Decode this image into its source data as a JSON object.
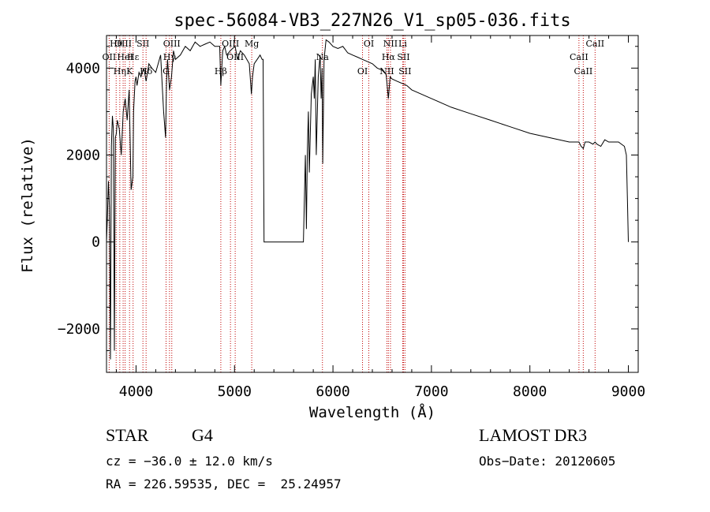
{
  "chart_data": {
    "type": "line",
    "title": "spec-56084-VB3_227N26_V1_sp05-036.fits",
    "xlabel": "Wavelength (Å)",
    "ylabel": "Flux (relative)",
    "xlim": [
      3700,
      9100
    ],
    "ylim": [
      -3000,
      4750
    ],
    "xticks": [
      4000,
      5000,
      6000,
      7000,
      8000,
      9000
    ],
    "yticks": [
      -2000,
      0,
      2000,
      4000
    ],
    "xtick_labels": [
      "4000",
      "5000",
      "6000",
      "7000",
      "8000",
      "9000"
    ],
    "ytick_labels": [
      "-2000",
      "0",
      "2000",
      "4000"
    ],
    "series": [
      {
        "name": "spectrum",
        "x": [
          3700,
          3710,
          3720,
          3730,
          3740,
          3750,
          3760,
          3770,
          3780,
          3790,
          3800,
          3810,
          3830,
          3850,
          3870,
          3890,
          3910,
          3930,
          3950,
          3968,
          3975,
          3990,
          4000,
          4010,
          4030,
          4050,
          4080,
          4102,
          4130,
          4160,
          4200,
          4250,
          4280,
          4300,
          4310,
          4320,
          4340,
          4360,
          4380,
          4400,
          4450,
          4500,
          4550,
          4600,
          4650,
          4700,
          4750,
          4800,
          4850,
          4861,
          4880,
          4900,
          4920,
          4957,
          4980,
          5007,
          5030,
          5060,
          5100,
          5150,
          5172,
          5183,
          5200,
          5230,
          5260,
          5280,
          5290,
          5300,
          5690,
          5700,
          5720,
          5730,
          5740,
          5750,
          5760,
          5780,
          5800,
          5810,
          5820,
          5830,
          5850,
          5870,
          5880,
          5890,
          5896,
          5910,
          5930,
          5960,
          6000,
          6050,
          6100,
          6150,
          6200,
          6250,
          6300,
          6350,
          6400,
          6450,
          6500,
          6540,
          6563,
          6580,
          6600,
          6650,
          6700,
          6750,
          6800,
          7000,
          7200,
          7400,
          7600,
          7800,
          8000,
          8200,
          8400,
          8498,
          8520,
          8542,
          8560,
          8600,
          8640,
          8662,
          8680,
          8720,
          8760,
          8800,
          8850,
          8900,
          8960,
          8980,
          8990,
          9000
        ],
        "values": [
          0,
          600,
          1400,
          800,
          -2700,
          2200,
          2900,
          2600,
          -2500,
          2400,
          2500,
          2800,
          2600,
          2000,
          3000,
          3300,
          2800,
          3500,
          1200,
          1500,
          3000,
          3700,
          3800,
          3600,
          3900,
          3800,
          4000,
          3700,
          4100,
          4000,
          3900,
          4300,
          3000,
          2400,
          3700,
          4200,
          3500,
          3800,
          4400,
          4200,
          4300,
          4500,
          4400,
          4600,
          4500,
          4550,
          4600,
          4500,
          4500,
          3600,
          4400,
          4500,
          4300,
          4400,
          4450,
          4500,
          4200,
          4400,
          4300,
          4100,
          3400,
          3800,
          4100,
          4200,
          4300,
          4200,
          4200,
          0,
          0,
          0,
          2000,
          300,
          2100,
          3000,
          1600,
          3400,
          3800,
          3300,
          4200,
          2000,
          3800,
          4300,
          3300,
          4000,
          1800,
          4200,
          4650,
          4600,
          4500,
          4450,
          4500,
          4350,
          4300,
          4250,
          4200,
          4150,
          4100,
          4000,
          3950,
          3850,
          3300,
          3800,
          3750,
          3700,
          3650,
          3600,
          3500,
          3300,
          3100,
          2950,
          2800,
          2650,
          2500,
          2400,
          2300,
          2300,
          2200,
          2150,
          2300,
          2300,
          2250,
          2300,
          2250,
          2200,
          2350,
          2300,
          2300,
          2300,
          2200,
          2000,
          1000,
          0
        ]
      }
    ],
    "lines": [
      {
        "label": "Hθ",
        "x": 3798
      },
      {
        "label": "OII",
        "x": 3727
      },
      {
        "label": "Hη",
        "x": 3835
      },
      {
        "label": "OIII",
        "x": 3869
      },
      {
        "label": "HeI",
        "x": 3889
      },
      {
        "label": "K",
        "x": 3934
      },
      {
        "label": "SII",
        "x": 4070
      },
      {
        "label": "Hε",
        "x": 3970
      },
      {
        "label": "Hδ",
        "x": 4102
      },
      {
        "label": "OIII",
        "x": 4363
      },
      {
        "label": "Hγ",
        "x": 4340
      },
      {
        "label": "G",
        "x": 4305
      },
      {
        "label": "OIII",
        "x": 4959
      },
      {
        "label": "OIII",
        "x": 5007
      },
      {
        "label": "Hβ",
        "x": 4861
      },
      {
        "label": "Mg",
        "x": 5175
      },
      {
        "label": "Na",
        "x": 5893
      },
      {
        "label": "OI",
        "x": 6300
      },
      {
        "label": "OI",
        "x": 6364
      },
      {
        "label": "Hα",
        "x": 6563
      },
      {
        "label": "NII",
        "x": 6548
      },
      {
        "label": "NII",
        "x": 6584
      },
      {
        "label": "SII",
        "x": 6716
      },
      {
        "label": "SII",
        "x": 6731
      },
      {
        "label": "Li",
        "x": 6708
      },
      {
        "label": "CaII",
        "x": 8498
      },
      {
        "label": "CaII",
        "x": 8542
      },
      {
        "label": "CaII",
        "x": 8662
      }
    ]
  },
  "info": {
    "object_class": "STAR",
    "subclass": "G4",
    "survey": "LAMOST DR3",
    "redshift": "cz = −36.0 ± 12.0 km/s",
    "obs_date": "Obs−Date: 20120605",
    "coords": "RA = 226.59535, DEC =  25.24957"
  },
  "colors": {
    "line_marker": "#c00000",
    "spectrum": "#000000"
  }
}
